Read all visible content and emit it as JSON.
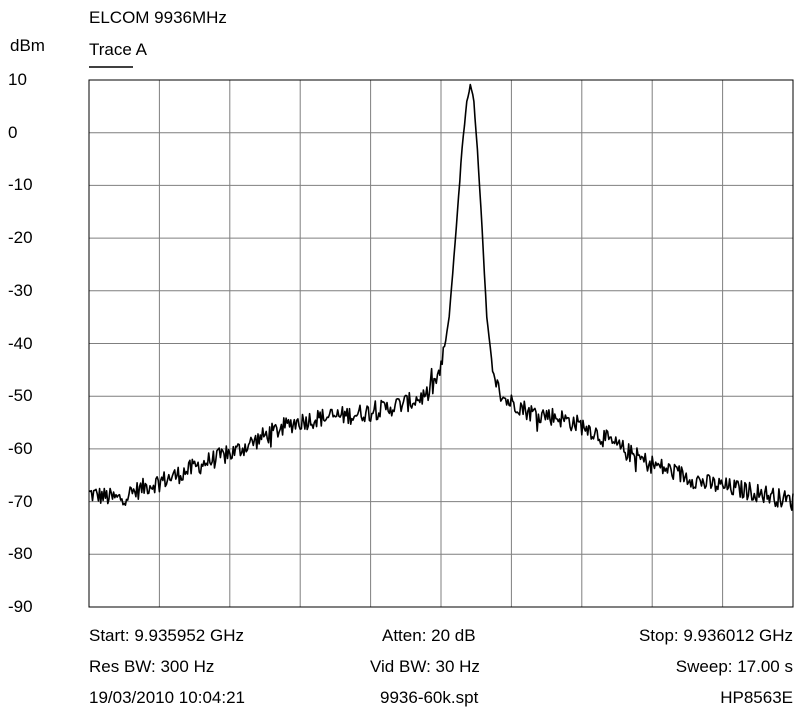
{
  "chart_data": {
    "type": "line",
    "title": "ELCOM 9936MHz",
    "ylabel": "dBm",
    "ylim": [
      -90,
      10
    ],
    "y_ticks": [
      "10",
      "0",
      "-10",
      "-20",
      "-30",
      "-40",
      "-50",
      "-60",
      "-70",
      "-80",
      "-90"
    ],
    "x_divisions": 10,
    "grid": true,
    "series": [
      {
        "name": "Trace A",
        "color": "#000000",
        "x": [
          0.0,
          2.5,
          5.0,
          7.5,
          10.0,
          12.5,
          15.0,
          17.5,
          20.0,
          22.5,
          25.0,
          27.5,
          29.0,
          30.0,
          30.7,
          31.3,
          31.8,
          32.2,
          32.5,
          32.8,
          33.1,
          33.5,
          33.9,
          34.4,
          35.0,
          35.7,
          36.5,
          37.5,
          40.0,
          42.5,
          45.0,
          47.5,
          50.0,
          52.5,
          55.0,
          57.5,
          60.0
        ],
        "y": [
          -68.5,
          -69.5,
          -67,
          -65,
          -62.5,
          -60.5,
          -57.5,
          -55,
          -54,
          -53.5,
          -52.5,
          -51,
          -49.5,
          -45,
          -35,
          -18,
          -3,
          6,
          9,
          6,
          -3,
          -18,
          -35,
          -45,
          -49.5,
          -51,
          -51.5,
          -53,
          -54,
          -56,
          -59.5,
          -62.5,
          -64.5,
          -66.5,
          -67.5,
          -68.5,
          -70
        ]
      }
    ]
  },
  "footer": {
    "start": "Start: 9.935952 GHz",
    "atten": "Atten: 20 dB",
    "stop": "Stop: 9.936012 GHz",
    "res_bw": "Res BW: 300 Hz",
    "vid_bw": "Vid BW: 30 Hz",
    "sweep": "Sweep: 17.00 s",
    "timestamp": "19/03/2010 10:04:21",
    "filename": "9936-60k.spt",
    "instrument": "HP8563E"
  }
}
